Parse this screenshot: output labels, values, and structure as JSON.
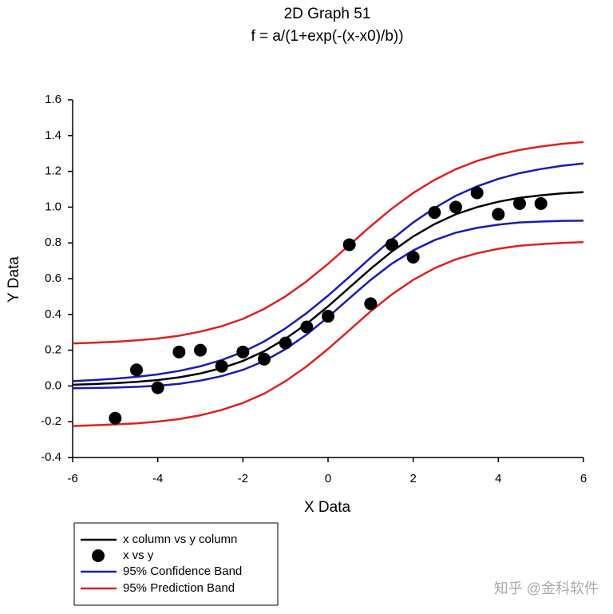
{
  "chart_data": {
    "type": "sigmoid-fit",
    "title": "2D Graph 51",
    "subtitle": "f = a/(1+exp(-(x-x0)/b))",
    "x_label": "X Data",
    "y_label": "Y Data",
    "xlim": [
      -6,
      6
    ],
    "xticks": [
      -6,
      -4,
      -2,
      0,
      2,
      4,
      6
    ],
    "ylim": [
      -0.4,
      1.6
    ],
    "yticks": [
      -0.4,
      -0.2,
      {
        "value": 0,
        "label": "0.0"
      },
      0.2,
      0.4,
      0.6,
      0.8,
      {
        "value": 1,
        "label": "1.0"
      },
      1.2,
      1.4,
      1.6
    ],
    "curve_x": [
      -6,
      -5.5,
      -5,
      -4.5,
      -4,
      -3.5,
      -3,
      -2.5,
      -2,
      -1.5,
      -1,
      -0.5,
      0,
      0.5,
      1,
      1.5,
      2,
      2.5,
      3,
      3.5,
      4,
      4.5,
      5,
      5.5,
      6
    ],
    "fit": {
      "name": "x column vs y column",
      "color": "#000000",
      "values": [
        0.007,
        0.011,
        0.016,
        0.023,
        0.033,
        0.048,
        0.07,
        0.1,
        0.14,
        0.194,
        0.264,
        0.348,
        0.445,
        0.55,
        0.655,
        0.752,
        0.836,
        0.905,
        0.96,
        1.0,
        1.03,
        1.052,
        1.066,
        1.077,
        1.084
      ]
    },
    "points": {
      "name": "x vs y",
      "color": "#000000",
      "x": [
        -5,
        -4.5,
        -4,
        -3.5,
        -3,
        -2.5,
        -2,
        -1.5,
        -1,
        -0.5,
        0,
        0.5,
        1,
        1.5,
        2,
        2.5,
        3,
        3.5,
        4,
        4.5,
        5
      ],
      "values": [
        -0.18,
        0.09,
        -0.01,
        0.19,
        0.2,
        0.11,
        0.19,
        0.15,
        0.24,
        0.33,
        0.39,
        0.79,
        0.46,
        0.79,
        0.72,
        0.97,
        1.0,
        1.08,
        0.96,
        1.02,
        1.02
      ]
    },
    "bands": [
      {
        "name": "95% Confidence Band",
        "color": "#1a1ab8",
        "upper": [
          0.027,
          0.033,
          0.041,
          0.051,
          0.065,
          0.084,
          0.11,
          0.145,
          0.19,
          0.249,
          0.322,
          0.408,
          0.505,
          0.61,
          0.717,
          0.82,
          0.914,
          0.995,
          1.063,
          1.116,
          1.158,
          1.19,
          1.213,
          1.231,
          1.244
        ],
        "lower": [
          -0.013,
          -0.011,
          -0.009,
          -0.005,
          0.001,
          0.012,
          0.03,
          0.055,
          0.09,
          0.139,
          0.206,
          0.288,
          0.385,
          0.49,
          0.593,
          0.684,
          0.758,
          0.815,
          0.857,
          0.884,
          0.902,
          0.914,
          0.919,
          0.923,
          0.924
        ]
      },
      {
        "name": "95% Prediction Band",
        "color": "#e0201e",
        "upper": [
          0.238,
          0.242,
          0.247,
          0.255,
          0.265,
          0.281,
          0.304,
          0.334,
          0.375,
          0.431,
          0.501,
          0.586,
          0.683,
          0.788,
          0.893,
          0.992,
          1.079,
          1.152,
          1.212,
          1.258,
          1.293,
          1.32,
          1.339,
          1.354,
          1.364
        ],
        "lower": [
          -0.224,
          -0.22,
          -0.215,
          -0.209,
          -0.199,
          -0.185,
          -0.164,
          -0.134,
          -0.095,
          -0.043,
          0.027,
          0.11,
          0.207,
          0.312,
          0.417,
          0.512,
          0.593,
          0.658,
          0.708,
          0.742,
          0.767,
          0.784,
          0.793,
          0.8,
          0.804
        ]
      }
    ],
    "watermark": "知乎 @金科软件"
  }
}
